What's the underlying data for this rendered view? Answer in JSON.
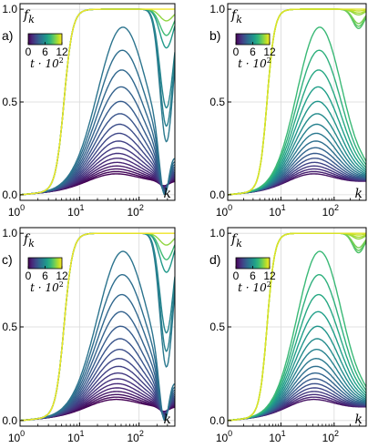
{
  "chart_data": [
    {
      "type": "line",
      "panel_label": "a)",
      "ylabel": "f",
      "ylabel_sub": "k",
      "xlabel": "k",
      "x_ticks": [
        {
          "base": "10",
          "exp": "0"
        },
        {
          "base": "10",
          "exp": "1"
        },
        {
          "base": "10",
          "exp": "2"
        }
      ],
      "y_ticks": [
        "0.0",
        "0.5",
        "1.0"
      ],
      "xscale": "log",
      "xlim": [
        1,
        400
      ],
      "ylim": [
        -0.03,
        1.03
      ],
      "colorbar": {
        "ticks": [
          "0",
          "6",
          "12"
        ],
        "label_main": "t · 10",
        "label_exp": "2",
        "range": [
          0,
          12
        ]
      },
      "tail": "dip",
      "n_curves": 24,
      "grid": true
    },
    {
      "type": "line",
      "panel_label": "b)",
      "ylabel": "f",
      "ylabel_sub": "k",
      "xlabel": "k",
      "x_ticks": [
        {
          "base": "10",
          "exp": "0"
        },
        {
          "base": "10",
          "exp": "1"
        },
        {
          "base": "10",
          "exp": "2"
        }
      ],
      "y_ticks": [
        "0.0",
        "0.5",
        "1.0"
      ],
      "xscale": "log",
      "xlim": [
        1,
        400
      ],
      "ylim": [
        -0.03,
        1.03
      ],
      "colorbar": {
        "ticks": [
          "0",
          "6",
          "12"
        ],
        "label_main": "t · 10",
        "label_exp": "2",
        "range": [
          0,
          12
        ]
      },
      "tail": "shallow",
      "n_curves": 24,
      "grid": true
    },
    {
      "type": "line",
      "panel_label": "c)",
      "ylabel": "f",
      "ylabel_sub": "k",
      "xlabel": "k",
      "x_ticks": [
        {
          "base": "10",
          "exp": "0"
        },
        {
          "base": "10",
          "exp": "1"
        },
        {
          "base": "10",
          "exp": "2"
        }
      ],
      "y_ticks": [
        "0.0",
        "0.5",
        "1.0"
      ],
      "xscale": "log",
      "xlim": [
        1,
        400
      ],
      "ylim": [
        -0.03,
        1.03
      ],
      "colorbar": {
        "ticks": [
          "0",
          "6",
          "12"
        ],
        "label_main": "t · 10",
        "label_exp": "2",
        "range": [
          0,
          12
        ]
      },
      "tail": "dip",
      "n_curves": 24,
      "grid": true
    },
    {
      "type": "line",
      "panel_label": "d)",
      "ylabel": "f",
      "ylabel_sub": "k",
      "xlabel": "k",
      "x_ticks": [
        {
          "base": "10",
          "exp": "0"
        },
        {
          "base": "10",
          "exp": "1"
        },
        {
          "base": "10",
          "exp": "2"
        }
      ],
      "y_ticks": [
        "0.0",
        "0.5",
        "1.0"
      ],
      "xscale": "log",
      "xlim": [
        1,
        400
      ],
      "ylim": [
        -0.03,
        1.03
      ],
      "colorbar": {
        "ticks": [
          "0",
          "6",
          "12"
        ],
        "label_main": "t · 10",
        "label_exp": "2",
        "range": [
          0,
          12
        ]
      },
      "tail": "shallow",
      "n_curves": 24,
      "grid": true
    }
  ],
  "colors": {
    "viridis": [
      "#440154",
      "#482878",
      "#3e4989",
      "#31688e",
      "#26828e",
      "#1f9e89",
      "#35b779",
      "#6ece58",
      "#b5de2b",
      "#fde725"
    ],
    "grid": "#d9d9d9",
    "axis": "#000000"
  }
}
